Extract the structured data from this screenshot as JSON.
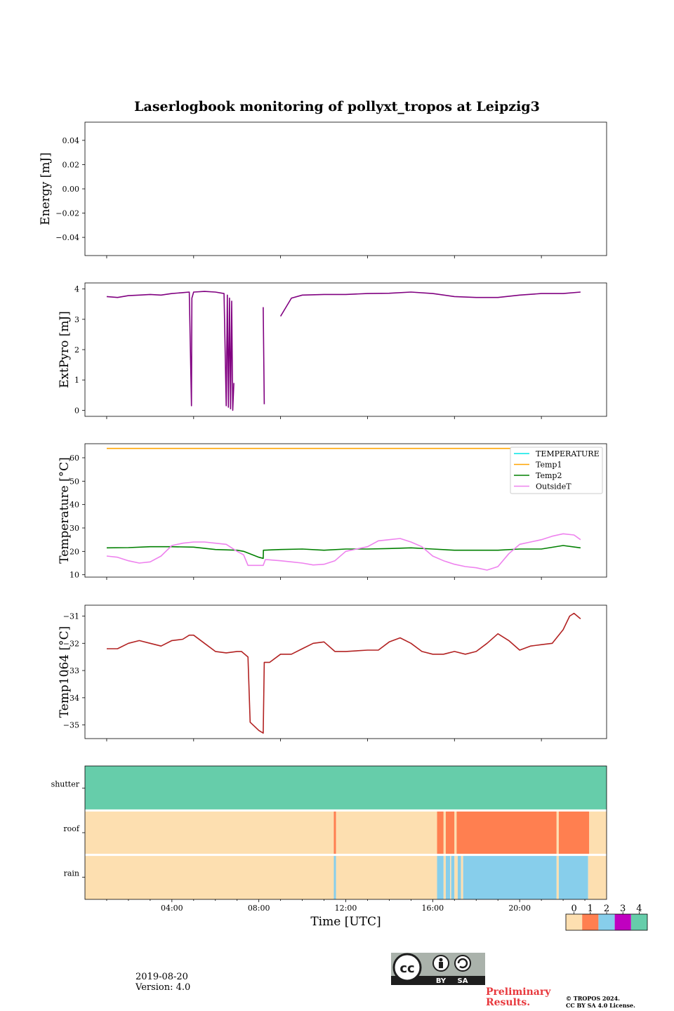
{
  "title": "Laserlogbook monitoring of pollyxt_tropos at Leipzig3",
  "footer": {
    "date": "2019-08-20",
    "version": "Version: 4.0",
    "preliminary_line1": "Preliminary",
    "preliminary_line2": "Results.",
    "copyright_line1": "© TROPOS 2024.",
    "copyright_line2": "CC BY SA 4.0 License.",
    "cc_badge": {
      "by": "BY",
      "sa": "SA"
    }
  },
  "chart_data": [
    {
      "type": "line",
      "name": "energy",
      "ylabel": "Energy [mJ]",
      "ylim": [
        -0.055,
        0.055
      ],
      "yticks": [
        0.04,
        0.02,
        0.0,
        -0.02,
        -0.04
      ],
      "ytick_labels": [
        "0.04",
        "0.02",
        "0.00",
        "−0.02",
        "−0.04"
      ],
      "series": []
    },
    {
      "type": "line",
      "name": "extpyro",
      "ylabel": "ExtPyro [mJ]",
      "ylim": [
        -0.2,
        4.2
      ],
      "yticks": [
        0,
        1,
        2,
        3,
        4
      ],
      "ytick_labels": [
        "0",
        "1",
        "2",
        "3",
        "4"
      ],
      "series": [
        {
          "name": "ExtPyro",
          "color": "#800080",
          "x": [
            1.0,
            1.5,
            2.0,
            2.5,
            3.0,
            3.5,
            4.0,
            4.5,
            4.8,
            4.9,
            4.92,
            5.0,
            5.5,
            6.0,
            6.4,
            6.5,
            6.55,
            6.6,
            6.65,
            6.7,
            6.75,
            6.8,
            6.85,
            6.9,
            8.2,
            8.25,
            8.4,
            9.0,
            9.5,
            10.0,
            11.0,
            12.0,
            13.0,
            14.0,
            15.0,
            16.0,
            17.0,
            18.0,
            19.0,
            20.0,
            21.0,
            22.0,
            22.8
          ],
          "y": [
            3.75,
            3.72,
            3.78,
            3.8,
            3.82,
            3.8,
            3.85,
            3.88,
            3.9,
            0.15,
            3.7,
            3.9,
            3.92,
            3.9,
            3.85,
            0.15,
            3.8,
            0.1,
            3.7,
            0.05,
            3.6,
            0.0,
            0.9,
            null,
            3.4,
            0.2,
            null,
            3.1,
            3.7,
            3.8,
            3.82,
            3.82,
            3.85,
            3.86,
            3.9,
            3.85,
            3.75,
            3.72,
            3.72,
            3.8,
            3.85,
            3.85,
            3.9
          ]
        }
      ]
    },
    {
      "type": "line",
      "name": "temperature",
      "ylabel": "Temperature [°C]",
      "ylim": [
        9,
        66
      ],
      "yticks": [
        10,
        20,
        30,
        40,
        50,
        60
      ],
      "ytick_labels": [
        "10",
        "20",
        "30",
        "40",
        "50",
        "60"
      ],
      "legend_loc": "upper right",
      "series": [
        {
          "name": "TEMPERATURE",
          "color": "#00e5e5",
          "x": [],
          "y": []
        },
        {
          "name": "Temp1",
          "color": "#ffa500",
          "x": [
            1.0,
            22.8
          ],
          "y": [
            64,
            64
          ]
        },
        {
          "name": "Temp2",
          "color": "#008000",
          "x": [
            1.0,
            2.0,
            3.0,
            4.0,
            5.0,
            6.0,
            7.0,
            7.3,
            8.0,
            8.2,
            8.21,
            9.0,
            10.0,
            11.0,
            12.0,
            13.0,
            14.0,
            15.0,
            16.0,
            17.0,
            18.0,
            19.0,
            20.0,
            21.0,
            22.0,
            22.8
          ],
          "y": [
            21.5,
            21.6,
            22,
            22,
            21.8,
            20.8,
            20.5,
            20.0,
            17.5,
            17.0,
            20.5,
            20.8,
            21,
            20.5,
            21,
            21,
            21.2,
            21.5,
            21,
            20.5,
            20.5,
            20.5,
            21,
            21,
            22.5,
            21.5
          ]
        },
        {
          "name": "OutsideT",
          "color": "#ee82ee",
          "x": [
            1.0,
            1.5,
            2.0,
            2.5,
            3.0,
            3.5,
            4.0,
            4.5,
            5.0,
            5.5,
            6.0,
            6.5,
            7.0,
            7.3,
            7.5,
            8.0,
            8.2,
            8.3,
            9.0,
            9.5,
            10.0,
            10.5,
            11.0,
            11.5,
            12.0,
            12.5,
            13.0,
            13.5,
            14.0,
            14.5,
            15.0,
            15.5,
            16.0,
            16.5,
            17.0,
            17.5,
            18.0,
            18.5,
            19.0,
            19.5,
            20.0,
            20.5,
            21.0,
            21.5,
            22.0,
            22.5,
            22.8
          ],
          "y": [
            18,
            17.5,
            16,
            15,
            15.5,
            18,
            22.5,
            23.5,
            24,
            24,
            23.5,
            23,
            20,
            18.5,
            14,
            14,
            14,
            16.5,
            16,
            15.5,
            15,
            14.2,
            14.5,
            16,
            20,
            21,
            22,
            24.5,
            25,
            25.5,
            24,
            22,
            18,
            16,
            14.5,
            13.5,
            13,
            12,
            13.5,
            19,
            23,
            24,
            25,
            26.5,
            27.5,
            27,
            25
          ]
        }
      ]
    },
    {
      "type": "line",
      "name": "temp1064",
      "ylabel": "Temp1064 [°C]",
      "ylim": [
        -35.5,
        -30.6
      ],
      "yticks": [
        -31,
        -32,
        -33,
        -34,
        -35
      ],
      "ytick_labels": [
        "−31",
        "−32",
        "−33",
        "−34",
        "−35"
      ],
      "series": [
        {
          "name": "Temp1064",
          "color": "#b22222",
          "x": [
            1.0,
            1.5,
            2.0,
            2.5,
            3.0,
            3.5,
            4.0,
            4.5,
            4.8,
            5.0,
            5.5,
            6.0,
            6.5,
            7.0,
            7.2,
            7.5,
            7.6,
            8.0,
            8.2,
            8.25,
            8.5,
            9.0,
            9.5,
            10.0,
            10.5,
            11.0,
            11.5,
            12.0,
            13.0,
            13.5,
            14.0,
            14.5,
            15.0,
            15.5,
            16.0,
            16.5,
            17.0,
            17.5,
            18.0,
            18.5,
            19.0,
            19.5,
            20.0,
            20.5,
            21.0,
            21.5,
            22.0,
            22.3,
            22.5,
            22.8
          ],
          "y": [
            -32.2,
            -32.2,
            -32.0,
            -31.9,
            -32.0,
            -32.1,
            -31.9,
            -31.85,
            -31.7,
            -31.7,
            -32.0,
            -32.3,
            -32.35,
            -32.3,
            -32.3,
            -32.5,
            -34.9,
            -35.2,
            -35.3,
            -32.7,
            -32.7,
            -32.4,
            -32.4,
            -32.2,
            -32.0,
            -31.95,
            -32.3,
            -32.3,
            -32.25,
            -32.25,
            -31.95,
            -31.8,
            -32.0,
            -32.3,
            -32.4,
            -32.4,
            -32.3,
            -32.4,
            -32.3,
            -32.0,
            -31.65,
            -31.9,
            -32.25,
            -32.1,
            -32.05,
            -32.0,
            -31.5,
            -31.0,
            -30.9,
            -31.1
          ]
        }
      ]
    },
    {
      "type": "heatmap",
      "name": "status",
      "xlabel": "Time [UTC]",
      "xlim": [
        0,
        24
      ],
      "xticks": [
        4,
        8,
        12,
        16,
        20
      ],
      "xtick_labels": [
        "04:00",
        "08:00",
        "12:00",
        "16:00",
        "20:00"
      ],
      "rows": [
        "shutter",
        "roof",
        "rain"
      ],
      "colorbar": {
        "values": [
          0,
          1,
          2,
          3,
          4
        ],
        "labels": [
          "0",
          "1",
          "2",
          "3",
          "4"
        ],
        "colors": [
          "#fddfb0",
          "#ff7f50",
          "#87ceeb",
          "#c000c0",
          "#66cdaa"
        ]
      },
      "segments": {
        "shutter": [
          [
            0,
            24,
            4
          ]
        ],
        "roof": [
          [
            0,
            11.45,
            0
          ],
          [
            11.45,
            11.55,
            1
          ],
          [
            11.55,
            16.2,
            0
          ],
          [
            16.2,
            16.5,
            1
          ],
          [
            16.5,
            16.6,
            0
          ],
          [
            16.6,
            17.0,
            1
          ],
          [
            17.0,
            17.1,
            0
          ],
          [
            17.1,
            21.7,
            1
          ],
          [
            21.7,
            21.8,
            0
          ],
          [
            21.8,
            23.2,
            1
          ],
          [
            23.2,
            24,
            0
          ]
        ],
        "rain": [
          [
            0,
            11.45,
            0
          ],
          [
            11.45,
            11.55,
            2
          ],
          [
            11.55,
            16.2,
            0
          ],
          [
            16.2,
            16.5,
            2
          ],
          [
            16.5,
            16.6,
            0
          ],
          [
            16.6,
            16.8,
            2
          ],
          [
            16.8,
            16.85,
            0
          ],
          [
            16.85,
            17.0,
            2
          ],
          [
            17.0,
            17.15,
            0
          ],
          [
            17.15,
            17.3,
            2
          ],
          [
            17.3,
            17.4,
            0
          ],
          [
            17.4,
            21.7,
            2
          ],
          [
            21.7,
            21.8,
            0
          ],
          [
            21.8,
            23.15,
            2
          ],
          [
            23.15,
            24,
            0
          ]
        ]
      }
    }
  ]
}
